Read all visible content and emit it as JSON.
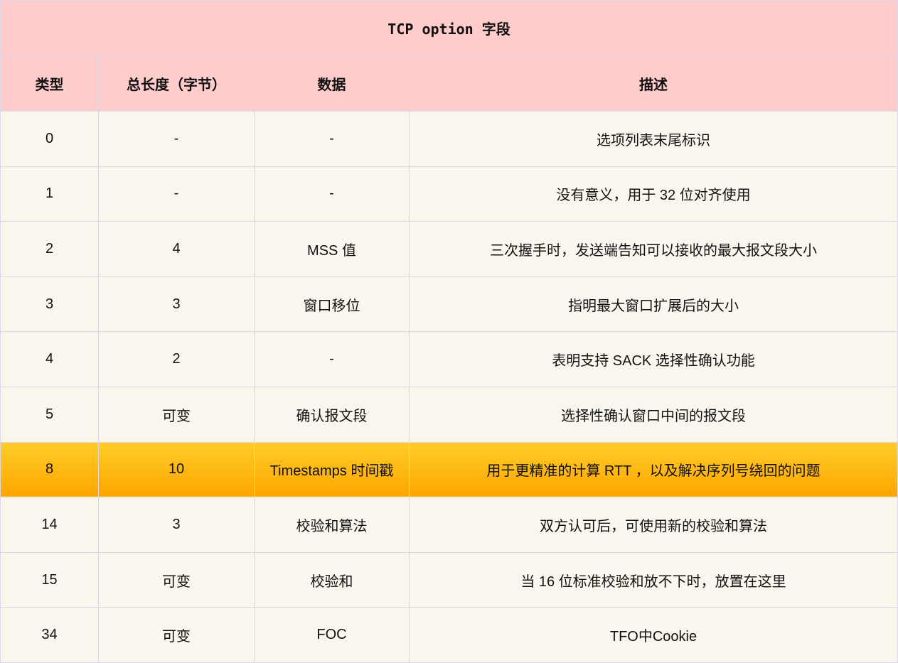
{
  "title": "TCP option 字段",
  "headers": [
    "类型",
    "总长度（字节）",
    "数据",
    "描述"
  ],
  "highlight_color": "#ffb60f",
  "rows": [
    {
      "cells": [
        "0",
        "-",
        "-",
        "选项列表末尾标识"
      ],
      "highlighted": false
    },
    {
      "cells": [
        "1",
        "-",
        "-",
        "没有意义，用于 32 位对齐使用"
      ],
      "highlighted": false
    },
    {
      "cells": [
        "2",
        "4",
        "MSS 值",
        "三次握手时，发送端告知可以接收的最大报文段大小"
      ],
      "highlighted": false
    },
    {
      "cells": [
        "3",
        "3",
        "窗口移位",
        "指明最大窗口扩展后的大小"
      ],
      "highlighted": false
    },
    {
      "cells": [
        "4",
        "2",
        "-",
        "表明支持 SACK 选择性确认功能"
      ],
      "highlighted": false
    },
    {
      "cells": [
        "5",
        "可变",
        "确认报文段",
        "选择性确认窗口中间的报文段"
      ],
      "highlighted": false
    },
    {
      "cells": [
        "8",
        "10",
        "Timestamps 时间戳",
        "用于更精准的计算 RTT ，以及解决序列号绕回的问题"
      ],
      "highlighted": true
    },
    {
      "cells": [
        "14",
        "3",
        "校验和算法",
        "双方认可后，可使用新的校验和算法"
      ],
      "highlighted": false
    },
    {
      "cells": [
        "15",
        "可变",
        "校验和",
        "当 16 位标准校验和放不下时，放置在这里"
      ],
      "highlighted": false
    },
    {
      "cells": [
        "34",
        "可变",
        "FOC",
        "TFO中Cookie"
      ],
      "highlighted": false
    }
  ]
}
